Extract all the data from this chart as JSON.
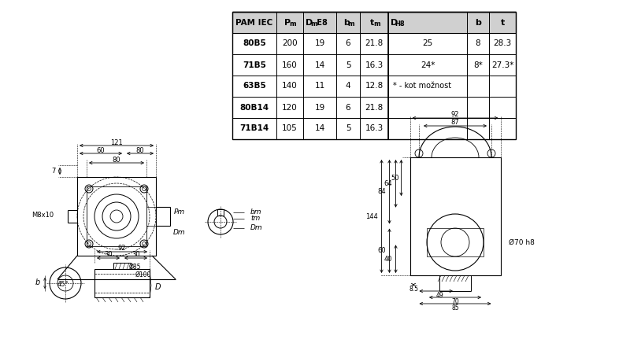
{
  "bg_color": "#ffffff",
  "table_rows": [
    [
      "80B5",
      "200",
      "19",
      "6",
      "21.8",
      "25",
      "8",
      "28.3"
    ],
    [
      "71B5",
      "160",
      "14",
      "5",
      "16.3",
      "24*",
      "8*",
      "27.3*"
    ],
    [
      "63B5",
      "140",
      "11",
      "4",
      "12.8",
      "* - kot možnost",
      "",
      ""
    ],
    [
      "80B14",
      "120",
      "19",
      "6",
      "21.8",
      "",
      "",
      ""
    ],
    [
      "71B14",
      "105",
      "14",
      "5",
      "16.3",
      "",
      "",
      ""
    ]
  ],
  "line_color": "#000000",
  "fig_bg": "#ffffff"
}
